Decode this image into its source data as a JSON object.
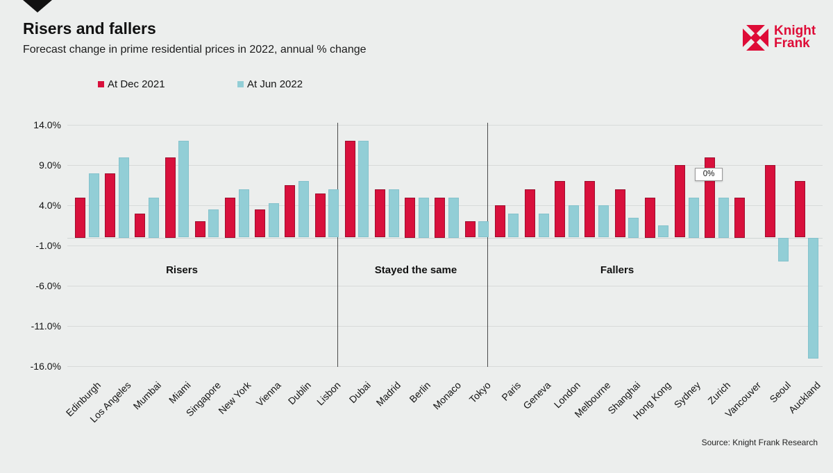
{
  "header": {
    "title": "Risers and fallers",
    "subtitle": "Forecast change in prime residential prices in 2022, annual % change"
  },
  "logo": {
    "line1": "Knight",
    "line2": "Frank",
    "color": "#de0c37"
  },
  "legend": [
    {
      "label": "At Dec 2021",
      "color": "#d8103c"
    },
    {
      "label": "At Jun 2022",
      "color": "#92ced6"
    }
  ],
  "tooltip": {
    "text": "0%"
  },
  "footer": {
    "source": "Source: Knight Frank Research"
  },
  "chart_data": {
    "type": "bar",
    "title": "Risers and fallers",
    "subtitle": "Forecast change in prime residential prices in 2022, annual % change",
    "xlabel": "",
    "ylabel": "annual % change",
    "ylim": [
      -16,
      14
    ],
    "grid": true,
    "legend_position": "top",
    "categories": [
      "Edinburgh",
      "Los Angeles",
      "Mumbai",
      "Miami",
      "Singapore",
      "New York",
      "Vienna",
      "Dublin",
      "Lisbon",
      "Dubai",
      "Madrid",
      "Berlin",
      "Monaco",
      "Tokyo",
      "Paris",
      "Geneva",
      "London",
      "Melbourne",
      "Shanghai",
      "Hong Kong",
      "Sydney",
      "Zurich",
      "Vancouver",
      "Seoul",
      "Auckland"
    ],
    "series": [
      {
        "name": "At Dec 2021",
        "color": "#d8103c",
        "values": [
          5,
          8,
          3,
          10,
          2,
          5,
          3.5,
          6.5,
          5.5,
          12,
          6,
          5,
          5,
          2,
          4,
          6,
          7,
          7,
          6,
          5,
          9,
          10,
          5,
          9,
          7
        ]
      },
      {
        "name": "At Jun 2022",
        "color": "#92ced6",
        "values": [
          8,
          10,
          5,
          12,
          3.5,
          6,
          4.25,
          7,
          6,
          12,
          6,
          5,
          5,
          2,
          3,
          3,
          4,
          4,
          2.5,
          1.5,
          5,
          5,
          0,
          -3,
          -15
        ]
      }
    ],
    "y_ticks": [
      {
        "value": 14,
        "label": "14.0%"
      },
      {
        "value": 9,
        "label": "9.0%"
      },
      {
        "value": 4,
        "label": "4.0%"
      },
      {
        "value": -1,
        "label": "-1.0%"
      },
      {
        "value": -6,
        "label": "-6.0%"
      },
      {
        "value": -11,
        "label": "-11.0%"
      },
      {
        "value": -16,
        "label": "-16.0%"
      }
    ],
    "sections": [
      {
        "label": "Risers",
        "from": 0,
        "to": 8
      },
      {
        "label": "Stayed the same",
        "from": 9,
        "to": 13
      },
      {
        "label": "Fallers",
        "from": 14,
        "to": 24
      }
    ],
    "annotation": {
      "text": "0%",
      "target_category": "Vancouver",
      "target_series": "At Jun 2022"
    }
  }
}
